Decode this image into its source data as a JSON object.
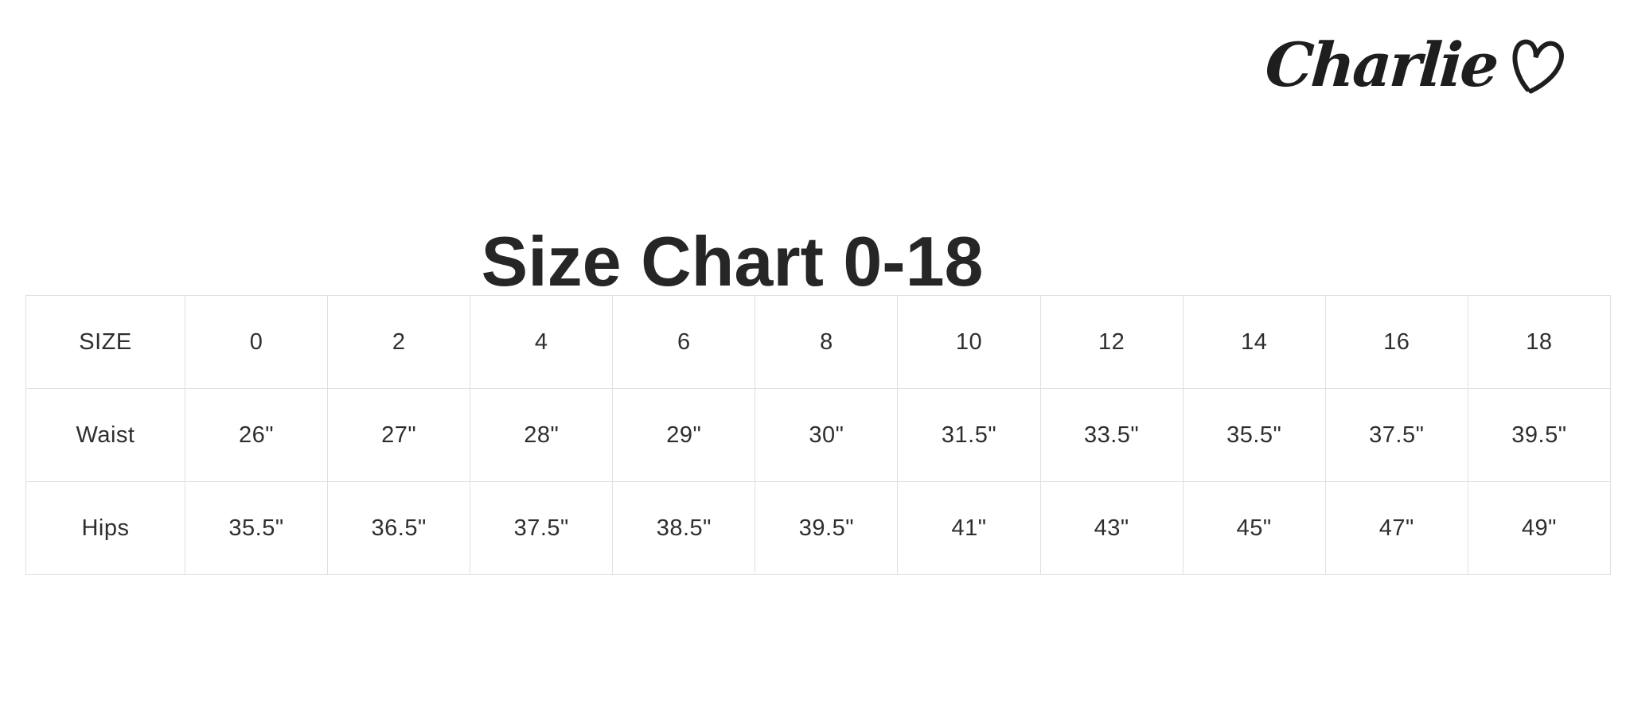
{
  "brand": {
    "logo_text": "Charlie",
    "logo_icon": "heart-outline-icon"
  },
  "title": "Size Chart 0-18",
  "size_table": {
    "header": {
      "label": "SIZE",
      "sizes": [
        "0",
        "2",
        "4",
        "6",
        "8",
        "10",
        "12",
        "14",
        "16",
        "18"
      ]
    },
    "rows": [
      {
        "label": "Waist",
        "values": [
          "26\"",
          "27\"",
          "28\"",
          "29\"",
          "30\"",
          "31.5\"",
          "33.5\"",
          "35.5\"",
          "37.5\"",
          "39.5\""
        ]
      },
      {
        "label": "Hips",
        "values": [
          "35.5\"",
          "36.5\"",
          "37.5\"",
          "38.5\"",
          "39.5\"",
          "41\"",
          "43\"",
          "45\"",
          "47\"",
          "49\""
        ]
      }
    ]
  },
  "colors": {
    "background": "#ffffff",
    "text": "#2e2e2e",
    "border": "#e0e0e0",
    "logo": "#1e1e1e"
  }
}
